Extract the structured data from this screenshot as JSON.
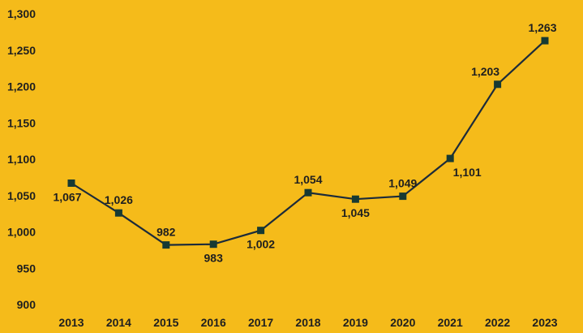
{
  "colors": {
    "background": "#F5BB1A",
    "line": "#1C2B3A",
    "marker": "#173A33",
    "text": "#1f1f1f"
  },
  "chart_data": {
    "type": "line",
    "title": "",
    "xlabel": "",
    "ylabel": "",
    "categories": [
      "2013",
      "2014",
      "2015",
      "2016",
      "2017",
      "2018",
      "2019",
      "2020",
      "2021",
      "2022",
      "2023"
    ],
    "series": [
      {
        "values": [
          1067,
          1026,
          982,
          983,
          1002,
          1054,
          1045,
          1049,
          1101,
          1203,
          1263
        ]
      }
    ],
    "data_labels": [
      "1,067",
      "1,026",
      "982",
      "983",
      "1,002",
      "1,054",
      "1,045",
      "1,049",
      "1,101",
      "1,203",
      "1,263"
    ],
    "ylim": [
      900,
      1300
    ],
    "yticks": [
      900,
      950,
      1000,
      1050,
      1100,
      1150,
      1200,
      1250,
      1300
    ],
    "ytick_labels": [
      "900",
      "950",
      "1,000",
      "1,050",
      "1,100",
      "1,150",
      "1,200",
      "1,250",
      "1,300"
    ],
    "marker": "square",
    "grid": false,
    "legend": "none"
  }
}
